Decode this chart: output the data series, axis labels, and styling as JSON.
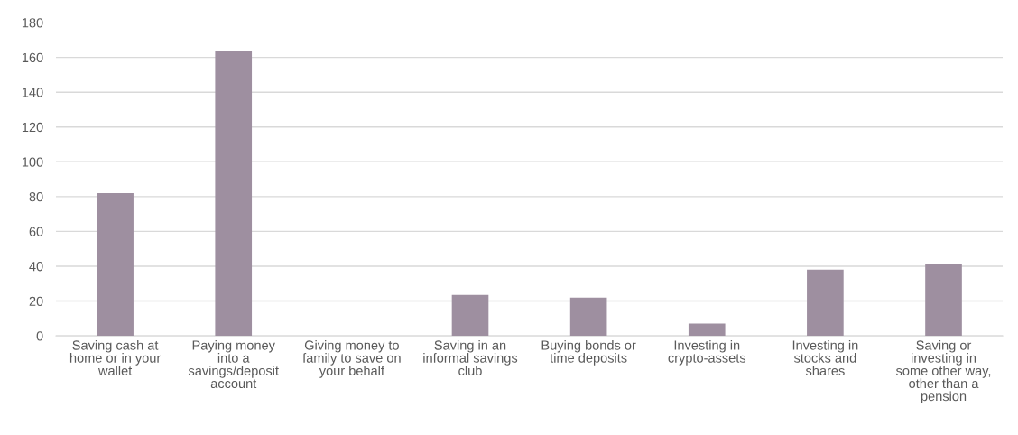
{
  "chart_data": {
    "type": "bar",
    "categories": [
      "Saving cash at\nhome or in your\nwallet",
      "Paying money\ninto a\nsavings/deposit\naccount",
      "Giving money to\nfamily to save on\nyour behalf",
      "Saving in an\ninformal savings\nclub",
      "Buying bonds or\ntime deposits",
      "Investing in\ncrypto-assets",
      "Investing in\nstocks and\nshares",
      "Saving or\ninvesting in\nsome other way,\nother than a\npension"
    ],
    "values": [
      82,
      164,
      0,
      23.5,
      22,
      7,
      38,
      41
    ],
    "color": "#9e8fa0",
    "ylim": [
      0,
      180
    ],
    "yticks": [
      0,
      20,
      40,
      60,
      80,
      100,
      120,
      140,
      160,
      180
    ],
    "grid": "y"
  }
}
